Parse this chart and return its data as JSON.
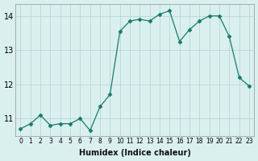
{
  "x": [
    0,
    1,
    2,
    3,
    4,
    5,
    6,
    7,
    8,
    9,
    10,
    11,
    12,
    13,
    14,
    15,
    16,
    17,
    18,
    19,
    20,
    21,
    22,
    23
  ],
  "y": [
    10.7,
    10.85,
    11.1,
    10.8,
    10.85,
    10.85,
    11.0,
    10.65,
    11.35,
    11.7,
    13.55,
    13.85,
    13.9,
    13.85,
    14.05,
    14.15,
    13.25,
    13.6,
    13.85,
    14.0,
    14.0,
    13.4,
    12.2,
    11.95
  ],
  "xlabel": "Humidex (Indice chaleur)",
  "ylim": [
    10.5,
    14.35
  ],
  "xlim": [
    -0.5,
    23.5
  ],
  "yticks": [
    11,
    12,
    13,
    14
  ],
  "xticks": [
    0,
    1,
    2,
    3,
    4,
    5,
    6,
    7,
    8,
    9,
    10,
    11,
    12,
    13,
    14,
    15,
    16,
    17,
    18,
    19,
    20,
    21,
    22,
    23
  ],
  "line_color": "#1a7a6e",
  "marker": "D",
  "marker_size": 2.5,
  "bg_color": "#d9f0ee",
  "grid_color": "#b8d8d4",
  "fig_bg": "#d9f0ee",
  "spine_color": "#aaaaaa"
}
